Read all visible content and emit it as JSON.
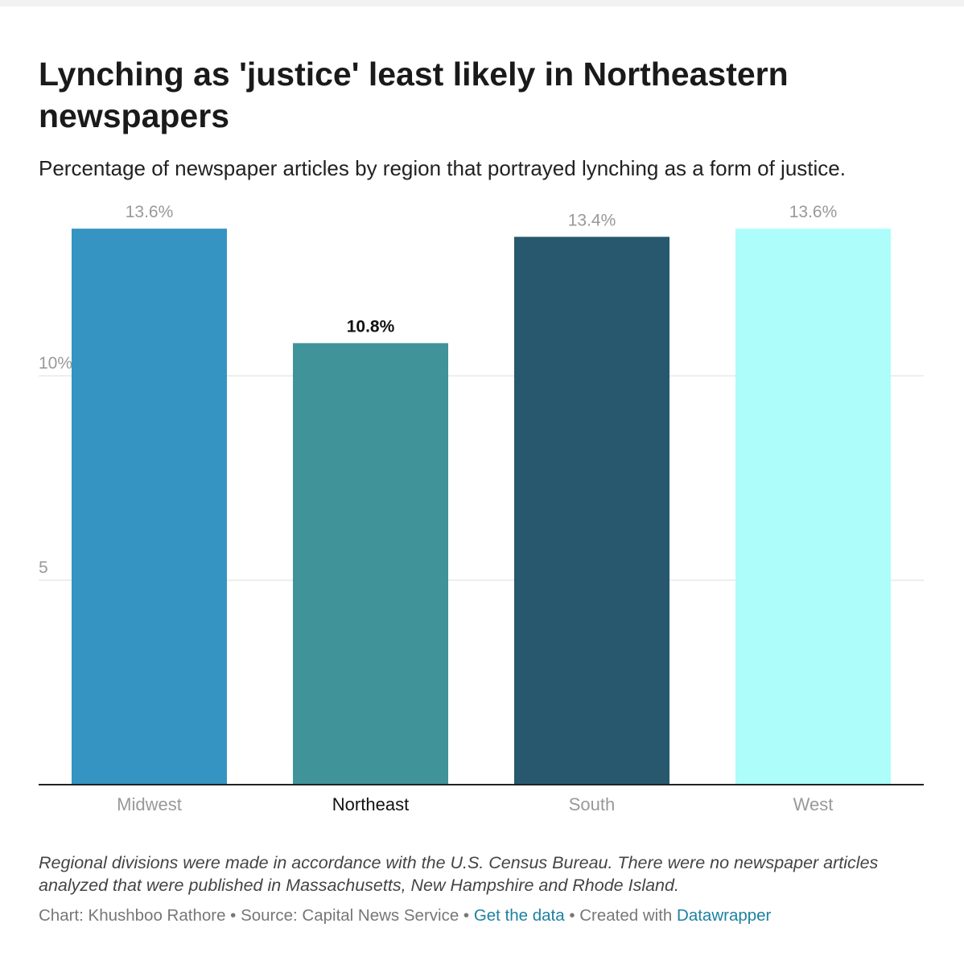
{
  "title": "Lynching as 'justice' least likely in Northeastern newspapers",
  "subtitle": "Percentage of newspaper articles by region that portrayed lynching as a form of justice.",
  "chart_data": {
    "type": "bar",
    "categories": [
      "Midwest",
      "Northeast",
      "South",
      "West"
    ],
    "values": [
      13.6,
      10.8,
      13.4,
      13.6
    ],
    "value_labels": [
      "13.6%",
      "10.8%",
      "13.4%",
      "13.6%"
    ],
    "highlighted_category": "Northeast",
    "colors": [
      "#3594c1",
      "#41939a",
      "#27586e",
      "#adfdfb"
    ],
    "yticks": [
      5,
      10
    ],
    "ytick_labels": [
      "5",
      "10%"
    ],
    "ylim": [
      0,
      14.5
    ],
    "grid": true
  },
  "notes": "Regional divisions were made in accordance with the U.S. Census Bureau. There were no newspaper articles analyzed that were published in Massachusetts, New Hampshire and Rhode Island.",
  "byline": {
    "chart": "Chart: Khushboo Rathore",
    "sep1": " • ",
    "source": "Source: Capital News Service",
    "sep2": " • ",
    "data_link": "Get the data",
    "sep3": " • ",
    "created": "Created with ",
    "tool_link": "Datawrapper"
  }
}
